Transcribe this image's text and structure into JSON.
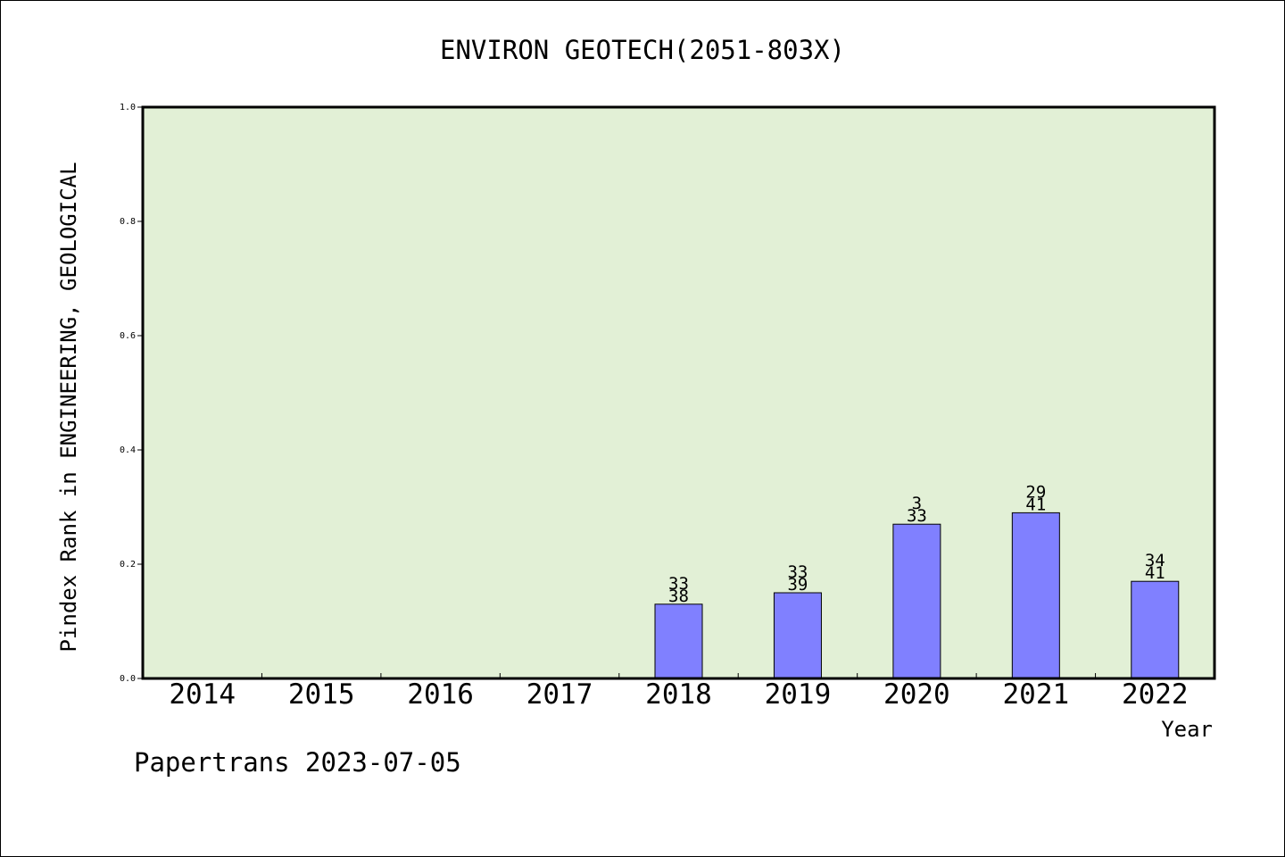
{
  "chart_data": {
    "type": "bar",
    "title": "ENVIRON GEOTECH(2051-803X)",
    "xlabel": "Year",
    "ylabel": "Pindex Rank in ENGINEERING, GEOLOGICAL",
    "ylim": [
      0.0,
      1.0
    ],
    "yticks": [
      "0.0",
      "0.2",
      "0.4",
      "0.6",
      "0.8",
      "1.0"
    ],
    "ytick_values": [
      0.0,
      0.2,
      0.4,
      0.6,
      0.8,
      1.0
    ],
    "categories": [
      "2014",
      "2015",
      "2016",
      "2017",
      "2018",
      "2019",
      "2020",
      "2021",
      "2022"
    ],
    "values": [
      null,
      null,
      null,
      null,
      0.13,
      0.15,
      0.27,
      0.29,
      0.17
    ],
    "labels_top": [
      "",
      "",
      "",
      "",
      "33",
      "33",
      "3",
      "29",
      "34"
    ],
    "labels_bottom": [
      "",
      "",
      "",
      "",
      "38",
      "39",
      "33",
      "41",
      "41"
    ],
    "grid": false,
    "plot_background": "#e2f0d6",
    "bar_color": "#8080ff"
  },
  "footer": "Papertrans 2023-07-05"
}
